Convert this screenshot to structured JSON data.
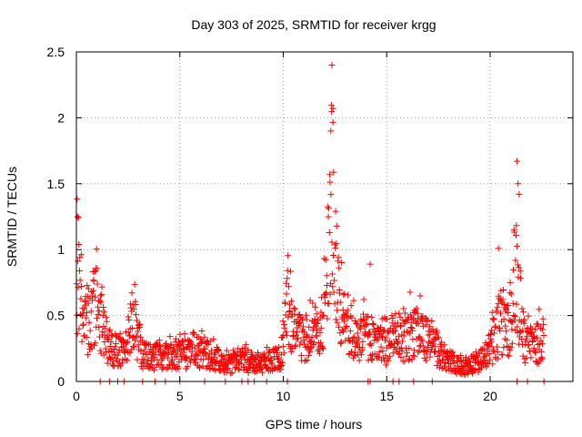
{
  "chart_data": {
    "type": "scatter",
    "title": "Day 303 of 2025, SRMTID for receiver krgg",
    "xlabel": "GPS time / hours",
    "ylabel": "SRMTID / TECUs",
    "xlim": [
      0,
      24
    ],
    "ylim": [
      0,
      2.5
    ],
    "xticks": [
      "0",
      "5",
      "10",
      "15",
      "20"
    ],
    "xtick_values": [
      0,
      5,
      10,
      15,
      20
    ],
    "yticks": [
      "0",
      "0.5",
      "1",
      "1.5",
      "2",
      "2.5"
    ],
    "ytick_values": [
      0,
      0.5,
      1,
      1.5,
      2,
      2.5
    ],
    "grid": true,
    "marker": "+",
    "color": "#ff0000",
    "profile_hours": [
      0.0,
      0.1,
      0.25,
      0.5,
      0.8,
      1.0,
      1.2,
      1.5,
      2.0,
      2.4,
      2.8,
      3.2,
      4.0,
      5.0,
      6.0,
      6.5,
      7.0,
      7.5,
      8.0,
      8.5,
      9.0,
      9.5,
      9.9,
      10.2,
      10.6,
      11.0,
      11.5,
      11.8,
      12.0,
      12.2,
      12.35,
      12.5,
      12.7,
      12.9,
      13.2,
      13.6,
      14.0,
      14.5,
      15.0,
      15.5,
      16.0,
      16.5,
      17.0,
      17.5,
      18.0,
      18.5,
      19.0,
      19.5,
      20.0,
      20.3,
      20.6,
      20.9,
      21.1,
      21.25,
      21.4,
      21.7,
      22.0,
      22.3,
      22.6
    ],
    "profile_median": [
      0.85,
      0.7,
      0.5,
      0.42,
      0.55,
      0.6,
      0.4,
      0.3,
      0.22,
      0.28,
      0.42,
      0.2,
      0.18,
      0.2,
      0.21,
      0.2,
      0.15,
      0.13,
      0.17,
      0.13,
      0.15,
      0.16,
      0.2,
      0.55,
      0.35,
      0.32,
      0.35,
      0.45,
      0.5,
      1.0,
      1.45,
      0.9,
      0.6,
      0.45,
      0.38,
      0.3,
      0.35,
      0.28,
      0.25,
      0.3,
      0.35,
      0.38,
      0.3,
      0.22,
      0.16,
      0.12,
      0.1,
      0.15,
      0.25,
      0.35,
      0.45,
      0.4,
      0.55,
      0.75,
      0.5,
      0.3,
      0.25,
      0.3,
      0.35
    ],
    "peak_values": [
      {
        "x": 12.35,
        "y": 2.4
      },
      {
        "x": 12.4,
        "y": 2.07
      },
      {
        "x": 12.3,
        "y": 1.9
      },
      {
        "x": 21.3,
        "y": 1.67
      },
      {
        "x": 21.35,
        "y": 1.5
      },
      {
        "x": 21.4,
        "y": 1.42
      },
      {
        "x": 0.05,
        "y": 1.25
      },
      {
        "x": 14.2,
        "y": 0.89
      },
      {
        "x": 20.4,
        "y": 1.01
      }
    ],
    "zero_values_hours": [
      1.15,
      1.6,
      2.0,
      2.3,
      3.2,
      3.8,
      4.3,
      5.0,
      6.2,
      7.2,
      8.0,
      8.3,
      8.6,
      9.2,
      10.2,
      14.1,
      14.2,
      15.3,
      15.6,
      16.3,
      17.2,
      21.3,
      21.8,
      22.6
    ],
    "n_points": 1400
  }
}
